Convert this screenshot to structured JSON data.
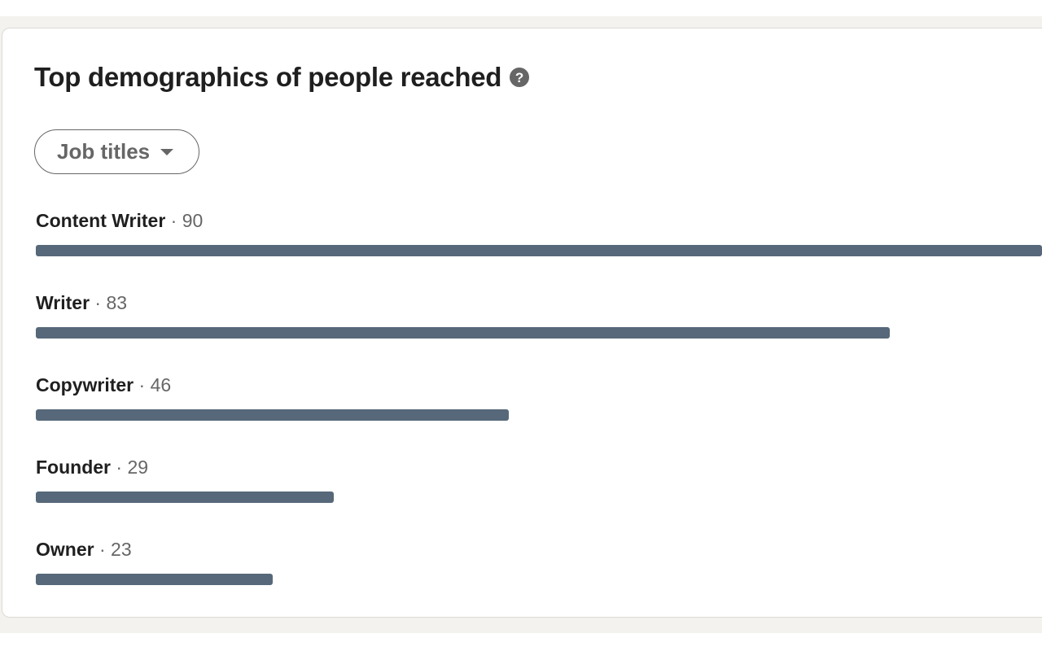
{
  "card": {
    "title": "Top demographics of people reached",
    "help_icon": "question-circle-icon",
    "filter": {
      "selected": "Job titles",
      "icon": "caret-down-icon"
    },
    "separator": "·",
    "bar_color": "#56687a",
    "items": [
      {
        "label": "Content Writer",
        "count": "90",
        "value": 90
      },
      {
        "label": "Writer",
        "count": "83",
        "value": 83
      },
      {
        "label": "Copywriter",
        "count": "46",
        "value": 46
      },
      {
        "label": "Founder",
        "count": "29",
        "value": 29
      },
      {
        "label": "Owner",
        "count": "23",
        "value": 23
      }
    ]
  }
}
